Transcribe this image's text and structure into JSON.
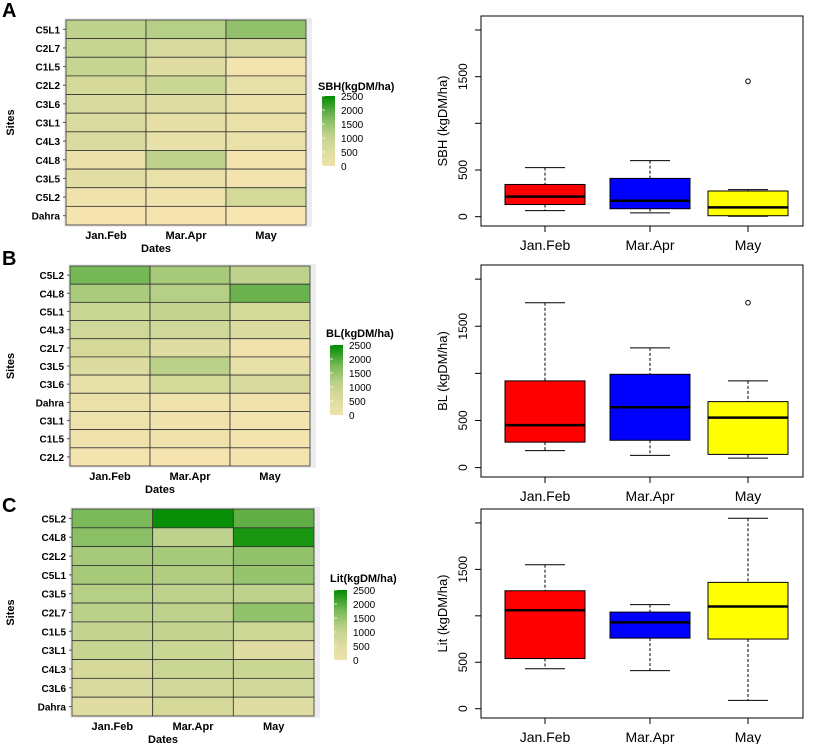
{
  "chart_data": [
    {
      "panel": "A",
      "type": "heatmap",
      "rows": [
        "C5L1",
        "C2L7",
        "C1L5",
        "C2L2",
        "C3L6",
        "C3L1",
        "C4L3",
        "C4L8",
        "C3L5",
        "C5L2",
        "Dahra"
      ],
      "columns": [
        "Jan.Feb",
        "Mar.Apr",
        "May"
      ],
      "values": [
        [
          1100,
          1200,
          1550
        ],
        [
          950,
          650,
          600
        ],
        [
          950,
          500,
          150
        ],
        [
          700,
          900,
          350
        ],
        [
          650,
          500,
          300
        ],
        [
          600,
          400,
          300
        ],
        [
          600,
          350,
          300
        ],
        [
          300,
          1100,
          150
        ],
        [
          450,
          300,
          150
        ],
        [
          200,
          200,
          750
        ],
        [
          100,
          100,
          50
        ]
      ],
      "ylabel": "Sites",
      "xlabel": "Dates",
      "legend_title": "SBH(kgDM/ha)",
      "legend_ticks": [
        "2500",
        "2000",
        "1500",
        "1000",
        "500",
        "0"
      ]
    },
    {
      "panel": "A",
      "type": "box",
      "categories": [
        "Jan.Feb",
        "Mar.Apr",
        "May"
      ],
      "ylabel": "SBH (kgDM/ha)",
      "yticks": [
        0,
        500,
        1500
      ],
      "ylim": [
        -100,
        2150
      ],
      "boxes": [
        {
          "min": 65,
          "q1": 130,
          "median": 215,
          "q3": 345,
          "max": 525,
          "outliers": [],
          "color": "#ff0000"
        },
        {
          "min": 40,
          "q1": 85,
          "median": 170,
          "q3": 410,
          "max": 600,
          "outliers": [],
          "color": "#0000ff"
        },
        {
          "min": 5,
          "q1": 10,
          "median": 100,
          "q3": 275,
          "max": 290,
          "outliers": [
            1450
          ],
          "color": "#ffff00"
        }
      ]
    },
    {
      "panel": "B",
      "type": "heatmap",
      "rows": [
        "C5L2",
        "C4L8",
        "C5L1",
        "C4L3",
        "C2L7",
        "C3L5",
        "C3L6",
        "Dahra",
        "C3L1",
        "C1L5",
        "C2L2"
      ],
      "columns": [
        "Jan.Feb",
        "Mar.Apr",
        "May"
      ],
      "values": [
        [
          1800,
          1350,
          1100
        ],
        [
          1300,
          1200,
          1900
        ],
        [
          900,
          1000,
          750
        ],
        [
          800,
          800,
          600
        ],
        [
          700,
          500,
          200
        ],
        [
          550,
          1150,
          350
        ],
        [
          350,
          750,
          650
        ],
        [
          300,
          200,
          200
        ],
        [
          250,
          200,
          150
        ],
        [
          200,
          200,
          150
        ],
        [
          150,
          100,
          150
        ]
      ],
      "ylabel": "Sites",
      "xlabel": "Dates",
      "legend_title": "BL(kgDM/ha)",
      "legend_ticks": [
        "2500",
        "2000",
        "1500",
        "1000",
        "500",
        "0"
      ]
    },
    {
      "panel": "B",
      "type": "box",
      "categories": [
        "Jan.Feb",
        "Mar.Apr",
        "May"
      ],
      "ylabel": "BL (kgDM/ha)",
      "yticks": [
        0,
        500,
        1500
      ],
      "ylim": [
        -100,
        2150
      ],
      "boxes": [
        {
          "min": 180,
          "q1": 270,
          "median": 450,
          "q3": 920,
          "max": 1750,
          "outliers": [],
          "color": "#ff0000"
        },
        {
          "min": 130,
          "q1": 290,
          "median": 640,
          "q3": 990,
          "max": 1270,
          "outliers": [],
          "color": "#0000ff"
        },
        {
          "min": 100,
          "q1": 140,
          "median": 530,
          "q3": 700,
          "max": 920,
          "outliers": [
            1750
          ],
          "color": "#ffff00"
        }
      ]
    },
    {
      "panel": "C",
      "type": "heatmap",
      "rows": [
        "C5L2",
        "C4L8",
        "C2L2",
        "C5L1",
        "C3L5",
        "C2L7",
        "C1L5",
        "C3L1",
        "C4L3",
        "C3L6",
        "Dahra"
      ],
      "columns": [
        "Jan.Feb",
        "Mar.Apr",
        "May"
      ],
      "values": [
        [
          1750,
          2450,
          1950
        ],
        [
          1600,
          1100,
          2350
        ],
        [
          1350,
          1350,
          1550
        ],
        [
          1350,
          1250,
          1500
        ],
        [
          1200,
          1100,
          1100
        ],
        [
          1150,
          1100,
          1550
        ],
        [
          1000,
          1000,
          850
        ],
        [
          950,
          900,
          500
        ],
        [
          700,
          900,
          900
        ],
        [
          650,
          800,
          800
        ],
        [
          500,
          700,
          500
        ]
      ],
      "ylabel": "Sites",
      "xlabel": "Dates",
      "legend_title": "Lit(kgDM/ha)",
      "legend_ticks": [
        "2500",
        "2000",
        "1500",
        "1000",
        "500",
        "0"
      ]
    },
    {
      "panel": "C",
      "type": "box",
      "categories": [
        "Jan.Feb",
        "Mar.Apr",
        "May"
      ],
      "ylabel": "Lit (kgDM/ha)",
      "yticks": [
        0,
        500,
        1500
      ],
      "ylim": [
        -100,
        2150
      ],
      "boxes": [
        {
          "min": 430,
          "q1": 540,
          "median": 1060,
          "q3": 1270,
          "max": 1550,
          "outliers": [],
          "color": "#ff0000"
        },
        {
          "min": 410,
          "q1": 760,
          "median": 930,
          "q3": 1040,
          "max": 1120,
          "outliers": [],
          "color": "#0000ff"
        },
        {
          "min": 90,
          "q1": 750,
          "median": 1100,
          "q3": 1360,
          "max": 2050,
          "outliers": [],
          "color": "#ffff00"
        }
      ]
    }
  ]
}
